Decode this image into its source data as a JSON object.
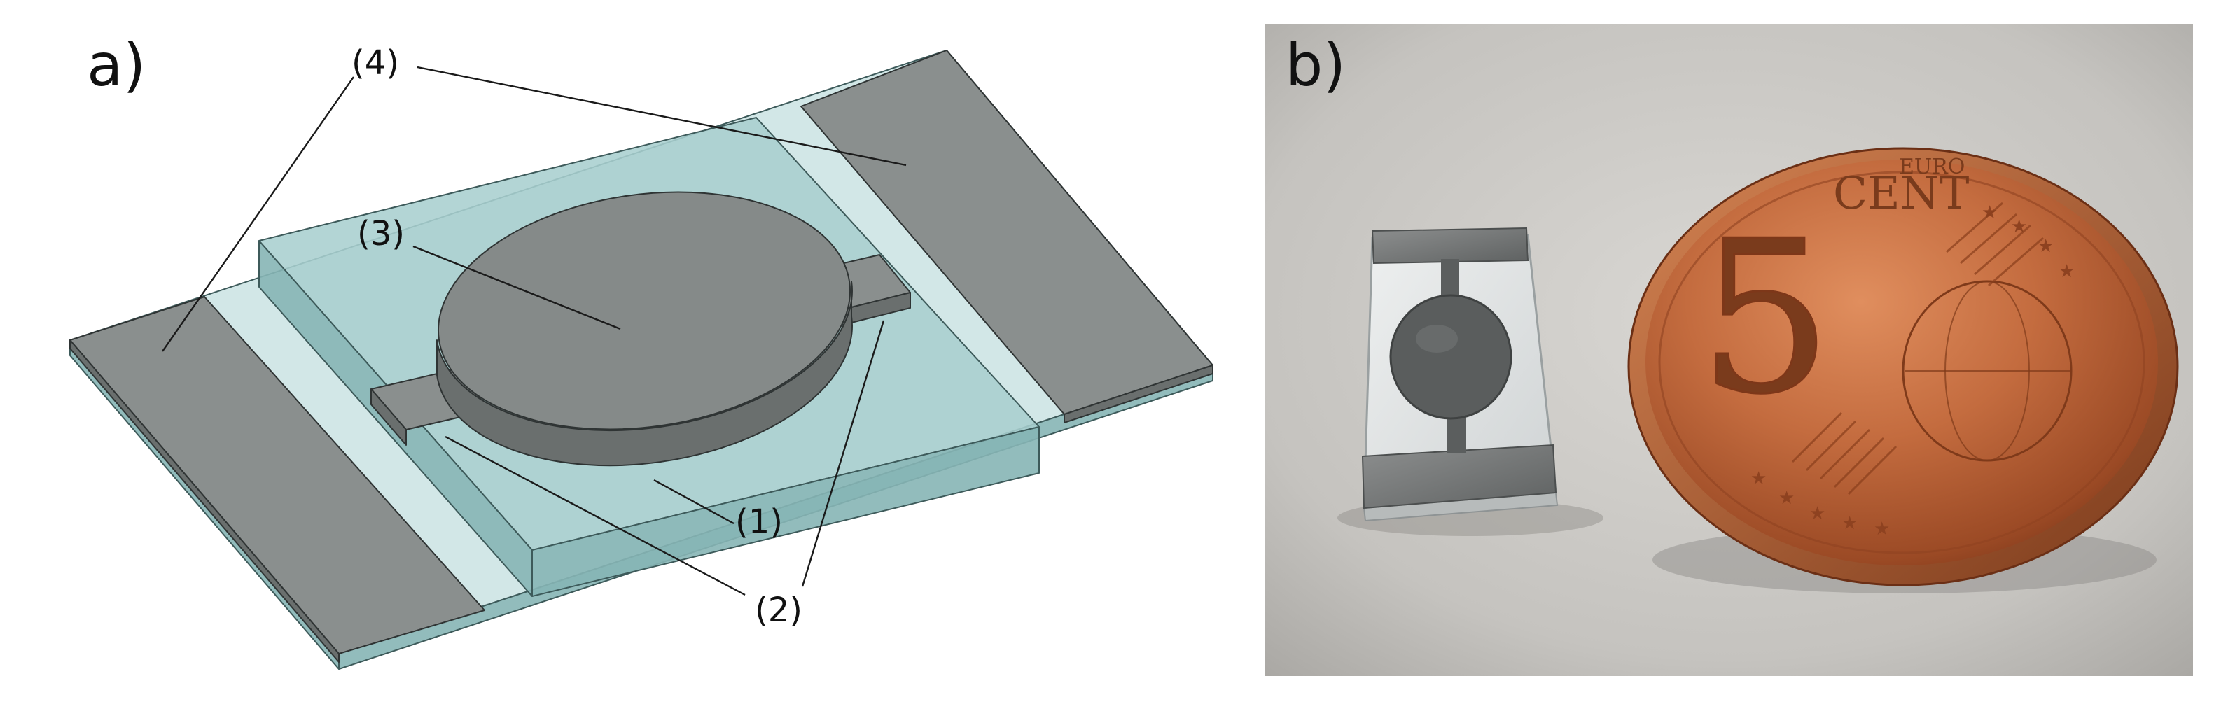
{
  "figure": {
    "panel_a": {
      "label": "a)",
      "callouts": {
        "c1": "(1)",
        "c2": "(2)",
        "c3": "(3)",
        "c4": "(4)"
      }
    },
    "panel_b": {
      "label": "b)",
      "coin": {
        "numeral": "5",
        "word": "CENT",
        "small": "EURO"
      }
    }
  },
  "colors": {
    "glass": "#a9cfcf",
    "metal": "#8a8f8e",
    "copper": "#b8663c",
    "background_photo": "#c9c7c3"
  }
}
